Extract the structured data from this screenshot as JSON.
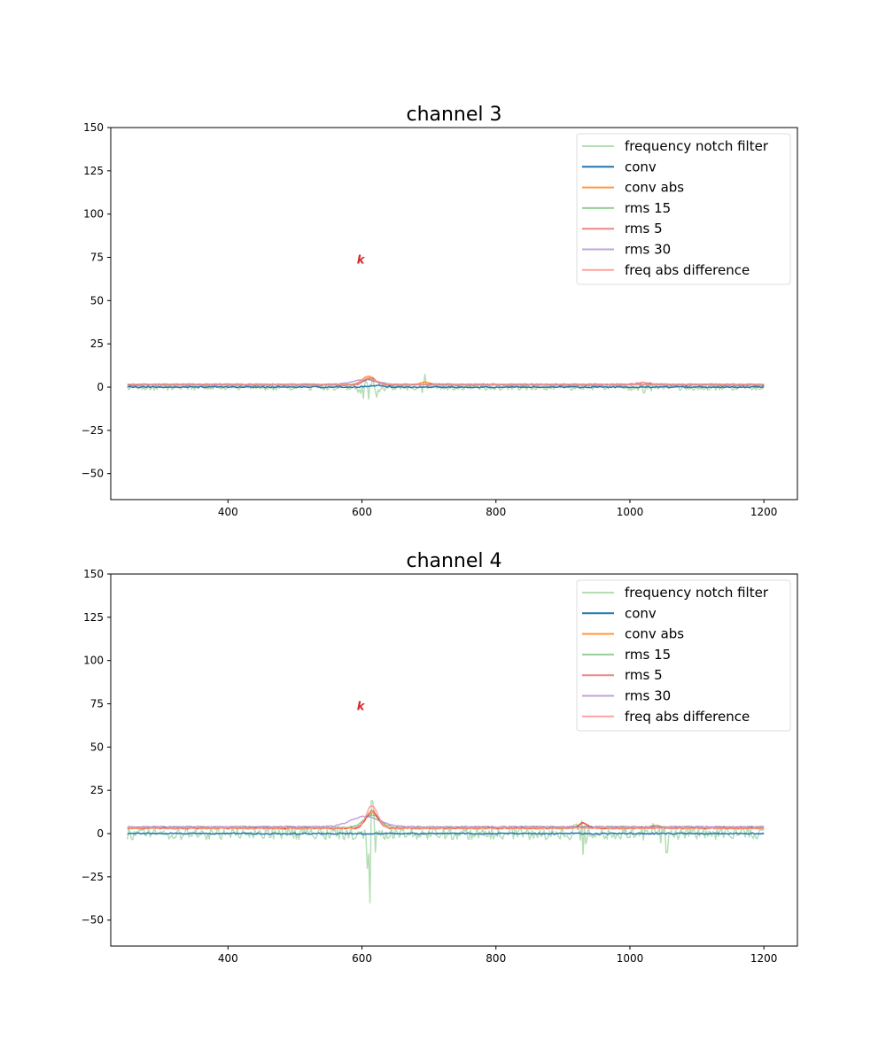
{
  "chart_data": [
    {
      "type": "line",
      "title": "channel 3",
      "xlabel": "",
      "ylabel": "",
      "xlim": [
        225,
        1250
      ],
      "ylim": [
        -65,
        150
      ],
      "xticks": [
        400,
        600,
        800,
        1000,
        1200
      ],
      "yticks": [
        -50,
        -25,
        0,
        25,
        50,
        75,
        100,
        125,
        150
      ],
      "grid": false,
      "legend_position": "top-right",
      "x_range": [
        250,
        1200
      ],
      "marker": {
        "x": 598,
        "y": 74,
        "text": "k",
        "color": "#d62728"
      },
      "series": [
        {
          "name": "frequency notch filter",
          "color": "#2ca02c",
          "opacity": 0.35,
          "noise": 1.8,
          "offset": 0,
          "bursts": [
            {
              "center": 610,
              "width": 15,
              "amp": 9
            },
            {
              "center": 695,
              "width": 8,
              "amp": 6
            },
            {
              "center": 960,
              "width": 10,
              "amp": 3
            },
            {
              "center": 1020,
              "width": 15,
              "amp": 3
            }
          ]
        },
        {
          "name": "conv",
          "color": "#1f77b4",
          "opacity": 1.0,
          "noise": 0.35,
          "offset": 0,
          "bursts": [
            {
              "center": 620,
              "width": 15,
              "amp": 1
            }
          ]
        },
        {
          "name": "conv abs",
          "color": "#ff7f0e",
          "opacity": 0.8,
          "noise": 0.3,
          "offset": 1.2,
          "bursts": [
            {
              "center": 610,
              "width": 14,
              "amp": 5
            },
            {
              "center": 695,
              "width": 12,
              "amp": 1.5
            }
          ]
        },
        {
          "name": "rms 15",
          "color": "#2ca02c",
          "opacity": 0.5,
          "noise": 0.3,
          "offset": 1.5,
          "bursts": [
            {
              "center": 610,
              "width": 15,
              "amp": 3
            }
          ]
        },
        {
          "name": "rms 5",
          "color": "#d62728",
          "opacity": 0.55,
          "noise": 0.4,
          "offset": 1.3,
          "bursts": [
            {
              "center": 612,
              "width": 12,
              "amp": 4
            },
            {
              "center": 1020,
              "width": 20,
              "amp": 1.2
            }
          ]
        },
        {
          "name": "rms 30",
          "color": "#9467bd",
          "opacity": 0.6,
          "noise": 0.25,
          "offset": 1.7,
          "bursts": [
            {
              "center": 605,
              "width": 25,
              "amp": 2.5
            }
          ]
        },
        {
          "name": "freq abs difference",
          "color": "#ff9896",
          "opacity": 0.9,
          "noise": 0.3,
          "offset": 1.4,
          "bursts": [
            {
              "center": 610,
              "width": 14,
              "amp": 4
            }
          ]
        }
      ]
    },
    {
      "type": "line",
      "title": "channel 4",
      "xlabel": "",
      "ylabel": "",
      "xlim": [
        225,
        1250
      ],
      "ylim": [
        -65,
        150
      ],
      "xticks": [
        400,
        600,
        800,
        1000,
        1200
      ],
      "yticks": [
        -50,
        -25,
        0,
        25,
        50,
        75,
        100,
        125,
        150
      ],
      "grid": false,
      "legend_position": "top-right",
      "x_range": [
        250,
        1200
      ],
      "marker": {
        "x": 598,
        "y": 74,
        "text": "k",
        "color": "#d62728"
      },
      "series": [
        {
          "name": "frequency notch filter",
          "color": "#2ca02c",
          "opacity": 0.35,
          "noise": 3.5,
          "offset": 0,
          "bursts": [
            {
              "center": 612,
              "width": 10,
              "amp": 18
            },
            {
              "center": 930,
              "width": 12,
              "amp": 8
            },
            {
              "center": 1040,
              "width": 15,
              "amp": 6
            }
          ],
          "spikes": [
            {
              "x": 612,
              "y": -40
            },
            {
              "x": 615,
              "y": 19
            },
            {
              "x": 608,
              "y": -20
            },
            {
              "x": 930,
              "y": -12
            },
            {
              "x": 1055,
              "y": -11
            }
          ]
        },
        {
          "name": "conv",
          "color": "#1f77b4",
          "opacity": 1.0,
          "noise": 0.4,
          "offset": 0,
          "bursts": []
        },
        {
          "name": "conv abs",
          "color": "#ff7f0e",
          "opacity": 0.8,
          "noise": 0.4,
          "offset": 3,
          "bursts": [
            {
              "center": 615,
              "width": 14,
              "amp": 9
            },
            {
              "center": 930,
              "width": 10,
              "amp": 3
            },
            {
              "center": 1040,
              "width": 10,
              "amp": 2
            }
          ]
        },
        {
          "name": "rms 15",
          "color": "#2ca02c",
          "opacity": 0.5,
          "noise": 0.4,
          "offset": 3.5,
          "bursts": [
            {
              "center": 615,
              "width": 18,
              "amp": 7
            }
          ]
        },
        {
          "name": "rms 5",
          "color": "#d62728",
          "opacity": 0.55,
          "noise": 0.5,
          "offset": 3.2,
          "bursts": [
            {
              "center": 615,
              "width": 12,
              "amp": 10
            },
            {
              "center": 930,
              "width": 8,
              "amp": 3
            }
          ]
        },
        {
          "name": "rms 30",
          "color": "#9467bd",
          "opacity": 0.6,
          "noise": 0.3,
          "offset": 4,
          "bursts": [
            {
              "center": 605,
              "width": 30,
              "amp": 6
            }
          ]
        },
        {
          "name": "freq abs difference",
          "color": "#ff9896",
          "opacity": 0.9,
          "noise": 0.4,
          "offset": 3.2,
          "bursts": [
            {
              "center": 615,
              "width": 12,
              "amp": 13
            }
          ]
        }
      ]
    }
  ]
}
